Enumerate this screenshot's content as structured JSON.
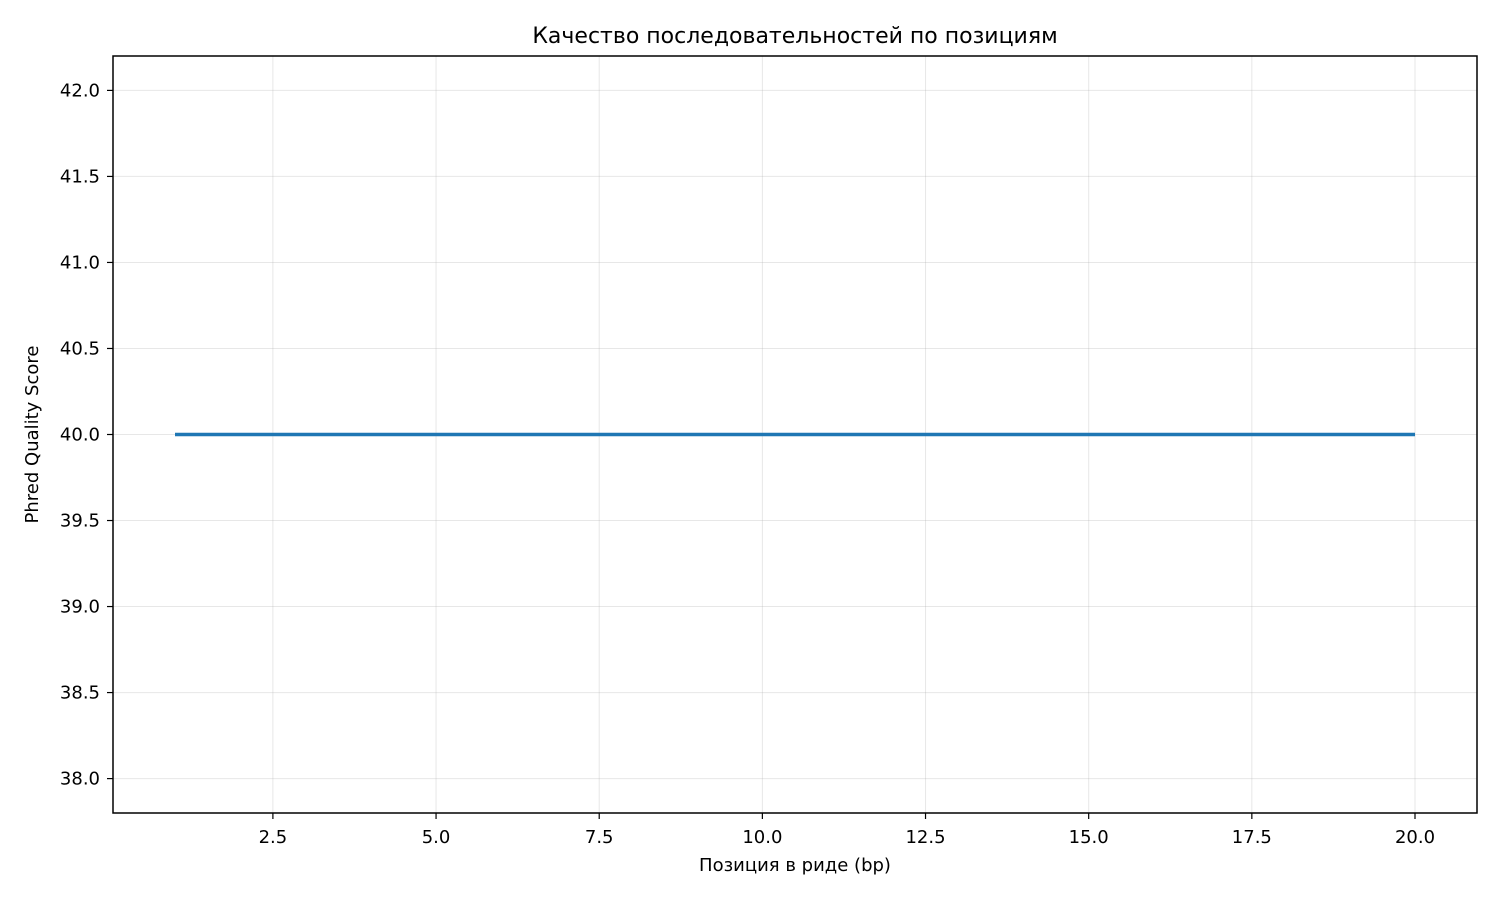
{
  "chart_data": {
    "type": "line",
    "title": "Качество последовательностей по позициям",
    "xlabel": "Позиция в риде (bp)",
    "ylabel": "Phred Quality Score",
    "xlim": [
      0.05,
      20.95
    ],
    "ylim": [
      37.8,
      42.2
    ],
    "xticks": [
      2.5,
      5.0,
      7.5,
      10.0,
      12.5,
      15.0,
      17.5,
      20.0
    ],
    "xtick_labels": [
      "2.5",
      "5.0",
      "7.5",
      "10.0",
      "12.5",
      "15.0",
      "17.5",
      "20.0"
    ],
    "yticks": [
      38.0,
      38.5,
      39.0,
      39.5,
      40.0,
      40.5,
      41.0,
      41.5,
      42.0
    ],
    "ytick_labels": [
      "38.0",
      "38.5",
      "39.0",
      "39.5",
      "40.0",
      "40.5",
      "41.0",
      "41.5",
      "42.0"
    ],
    "grid": true,
    "legend": "none",
    "series": [
      {
        "color": "#1f77b4",
        "x": [
          1,
          2,
          3,
          4,
          5,
          6,
          7,
          8,
          9,
          10,
          11,
          12,
          13,
          14,
          15,
          16,
          17,
          18,
          19,
          20
        ],
        "y": [
          40,
          40,
          40,
          40,
          40,
          40,
          40,
          40,
          40,
          40,
          40,
          40,
          40,
          40,
          40,
          40,
          40,
          40,
          40,
          40
        ]
      }
    ]
  }
}
